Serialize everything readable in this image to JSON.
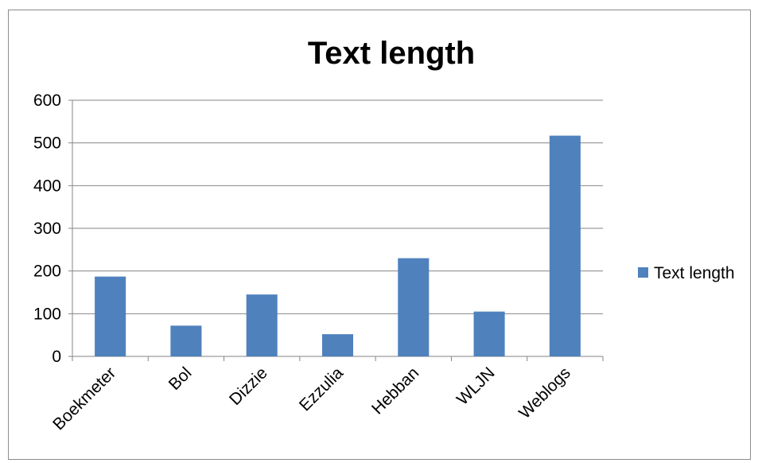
{
  "chart_data": {
    "type": "bar",
    "title": "Text length",
    "categories": [
      "Boekmeter",
      "Bol",
      "Dizzie",
      "Ezzulia",
      "Hebban",
      "WLJN",
      "Weblogs"
    ],
    "series": [
      {
        "name": "Text length",
        "values": [
          187,
          72,
          145,
          52,
          230,
          105,
          517
        ],
        "color": "#4f81bd"
      }
    ],
    "ylim": [
      0,
      600
    ],
    "yticks": [
      0,
      100,
      200,
      300,
      400,
      500,
      600
    ],
    "grid": true,
    "legend": "right",
    "xlabel": "",
    "ylabel": ""
  }
}
